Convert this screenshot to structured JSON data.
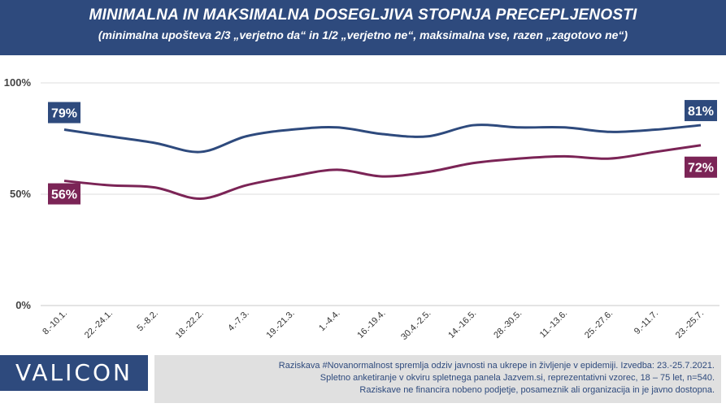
{
  "header": {
    "title": "MINIMALNA IN MAKSIMALNA DOSEGLJIVA STOPNJA PRECEPLJENOSTI",
    "subtitle": "(minimalna upošteva 2/3 „verjetno da“ in 1/2 „verjetno ne“, maksimalna vse, razen „zagotovo ne“)"
  },
  "chart_data": {
    "type": "line",
    "categories": [
      "8.-10.1.",
      "22.-24.1.",
      "5.-8.2.",
      "18.-22.2.",
      "4.-7.3.",
      "19.-21.3.",
      "1.-4.4.",
      "16.-19.4.",
      "30.4.-2.5.",
      "14.-16.5.",
      "28.-30.5.",
      "11.-13.6.",
      "25.-27.6.",
      "9.-11.7.",
      "23.-25.7."
    ],
    "series": [
      {
        "values": [
          79,
          76,
          73,
          69,
          76,
          79,
          80,
          77,
          76,
          81,
          80,
          80,
          78,
          79,
          81
        ],
        "color": "#2e4a7d",
        "first_label": "79%",
        "last_label": "81%"
      },
      {
        "values": [
          56,
          54,
          53,
          48,
          54,
          58,
          61,
          58,
          60,
          64,
          66,
          67,
          66,
          69,
          72
        ],
        "color": "#7b2456",
        "first_label": "56%",
        "last_label": "72%"
      }
    ],
    "y_ticks": [
      "0%",
      "50%",
      "100%"
    ],
    "ylim": [
      0,
      100
    ],
    "grid": true
  },
  "footer": {
    "logo": "VALICON",
    "notes": [
      "Raziskava #Novanormalnost spremlja odziv javnosti na ukrepe in življenje v epidemiji. Izvedba: 23.-25.7.2021.",
      "Spletno anketiranje v okviru spletnega panela Jazvem.si, reprezentativni vzorec, 18 – 75 let, n=540.",
      "Raziskave ne financira nobeno podjetje, posameznik ali organizacija in je javno dostopna."
    ]
  }
}
